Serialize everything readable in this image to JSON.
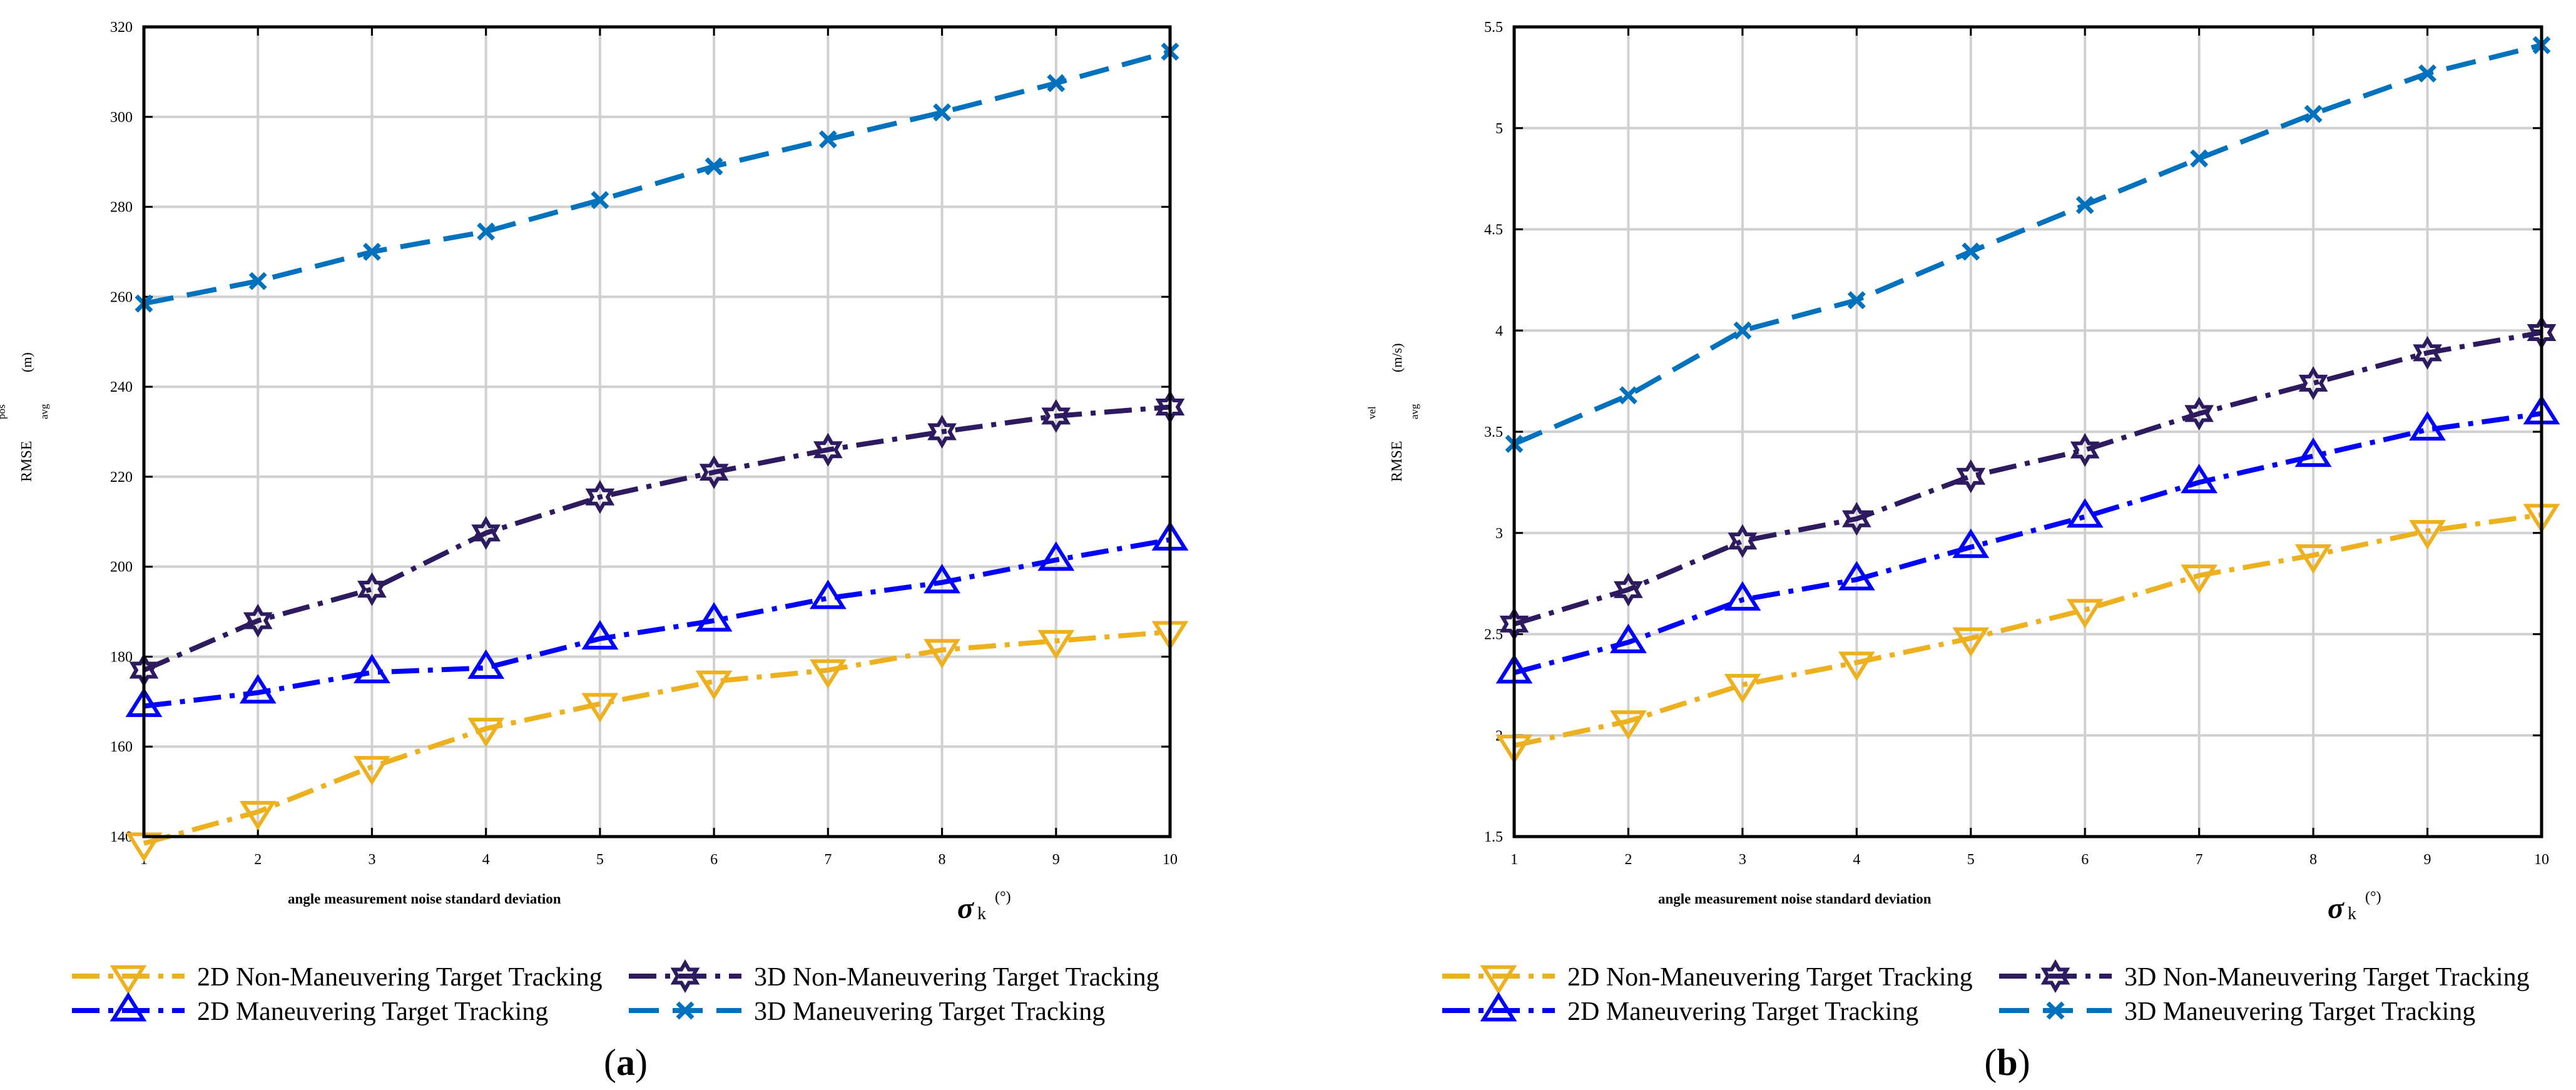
{
  "colors": {
    "2d_nonman": "#EDB120",
    "3d_nonman": "#2E1A5E",
    "2d_man": "#0000FF",
    "3d_man": "#0072BD",
    "axis": "#000000",
    "grid": "#D0D0D0"
  },
  "legend_labels": {
    "2d_nonman": "2D Non-Maneuvering Target Tracking",
    "3d_nonman": "3D Non-Maneuvering Target Tracking",
    "2d_man": "2D Maneuvering Target Tracking",
    "3d_man": "3D Maneuvering Target Tracking"
  },
  "chart_data": [
    {
      "type": "line",
      "panel_label": "a",
      "xlabel": "angle measurement noise standard deviation",
      "xsymbol": "σ",
      "xsymbol_sub": "k",
      "xunit": "(°)",
      "ylabel": {
        "main": "RMSE",
        "sup": "pos",
        "sub": "avg",
        "unit": "(m)"
      },
      "x": [
        1,
        2,
        3,
        4,
        5,
        6,
        7,
        8,
        9,
        10
      ],
      "xlim": [
        1,
        10
      ],
      "ylim": [
        140,
        320
      ],
      "xticks": [
        "1",
        "2",
        "3",
        "4",
        "5",
        "6",
        "7",
        "8",
        "9",
        "10"
      ],
      "yticks": [
        "140",
        "160",
        "180",
        "200",
        "220",
        "240",
        "260",
        "280",
        "300",
        "320"
      ],
      "grid": true,
      "legend_position": "bottom",
      "series": [
        {
          "key": "2d_nonman",
          "name": "2D Non-Maneuvering Target Tracking",
          "marker": "triangle-down",
          "dash": "dash-dot",
          "values": [
            138.5,
            145.5,
            155.5,
            164,
            169.5,
            174.5,
            177,
            181.5,
            183.5,
            185.5
          ]
        },
        {
          "key": "3d_nonman",
          "name": "3D Non-Maneuvering Target Tracking",
          "marker": "hexagram",
          "dash": "dash-dot",
          "values": [
            177,
            188,
            195,
            207.5,
            215.5,
            221,
            226,
            230,
            233.5,
            235.5
          ]
        },
        {
          "key": "2d_man",
          "name": "2D Maneuvering Target Tracking",
          "marker": "triangle-up",
          "dash": "dash-dot",
          "values": [
            169,
            172,
            176.5,
            177.5,
            184,
            188,
            193,
            196.5,
            201.5,
            206
          ]
        },
        {
          "key": "3d_man",
          "name": "3D Maneuvering Target Tracking",
          "marker": "x",
          "dash": "dash",
          "values": [
            258.5,
            263.5,
            270,
            274.5,
            281.5,
            289,
            295,
            301,
            307.5,
            314.5
          ]
        }
      ]
    },
    {
      "type": "line",
      "panel_label": "b",
      "xlabel": "angle measurement noise standard deviation",
      "xsymbol": "σ",
      "xsymbol_sub": "k",
      "xunit": "(°)",
      "ylabel": {
        "main": "RMSE",
        "sup": "vel",
        "sub": "avg",
        "unit": "(m/s)"
      },
      "x": [
        1,
        2,
        3,
        4,
        5,
        6,
        7,
        8,
        9,
        10
      ],
      "xlim": [
        1,
        10
      ],
      "ylim": [
        1.5,
        5.5
      ],
      "xticks": [
        "1",
        "2",
        "3",
        "4",
        "5",
        "6",
        "7",
        "8",
        "9",
        "10"
      ],
      "yticks": [
        "1.5",
        "2",
        "2.5",
        "3",
        "3.5",
        "4",
        "4.5",
        "5",
        "5.5"
      ],
      "grid": true,
      "legend_position": "bottom",
      "series": [
        {
          "key": "2d_nonman",
          "name": "2D Non-Maneuvering Target Tracking",
          "marker": "triangle-down",
          "dash": "dash-dot",
          "values": [
            1.95,
            2.07,
            2.25,
            2.36,
            2.48,
            2.62,
            2.79,
            2.89,
            3.01,
            3.09
          ]
        },
        {
          "key": "3d_nonman",
          "name": "3D Non-Maneuvering Target Tracking",
          "marker": "hexagram",
          "dash": "dash-dot",
          "values": [
            2.55,
            2.72,
            2.96,
            3.07,
            3.28,
            3.41,
            3.59,
            3.74,
            3.89,
            3.99
          ]
        },
        {
          "key": "2d_man",
          "name": "2D Maneuvering Target Tracking",
          "marker": "triangle-up",
          "dash": "dash-dot",
          "values": [
            2.31,
            2.46,
            2.67,
            2.77,
            2.93,
            3.08,
            3.25,
            3.38,
            3.51,
            3.59
          ]
        },
        {
          "key": "3d_man",
          "name": "3D Maneuvering Target Tracking",
          "marker": "x",
          "dash": "dash",
          "values": [
            3.44,
            3.68,
            4.0,
            4.15,
            4.39,
            4.62,
            4.85,
            5.07,
            5.27,
            5.41
          ]
        }
      ]
    }
  ]
}
